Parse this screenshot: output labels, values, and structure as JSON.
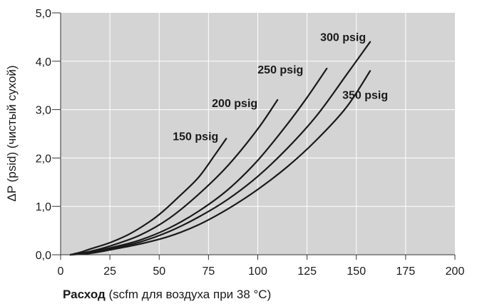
{
  "chart_data": {
    "type": "line",
    "xlabel_bold": "Расход",
    "xlabel_rest": " (scfm для воздуха при 38 °C)",
    "ylabel": "ΔP (psid) (чистый сухой)",
    "xlim": [
      0,
      200
    ],
    "ylim": [
      0,
      5
    ],
    "x_ticks": [
      "0",
      "25",
      "50",
      "75",
      "100",
      "125",
      "150",
      "175",
      "200"
    ],
    "y_ticks": [
      "0,0",
      "1,0",
      "2,0",
      "3,0",
      "4,0",
      "5,0"
    ],
    "grid": true,
    "colors": {
      "plot_bg": "#d4d4d4",
      "grid": "#ffffff",
      "line": "#1a1a1a",
      "text": "#1a1a1a"
    },
    "series": [
      {
        "name": "150 psig",
        "x": [
          5,
          10,
          15,
          25,
          35,
          45,
          52,
          60,
          70,
          78,
          84
        ],
        "y": [
          0,
          0.05,
          0.12,
          0.25,
          0.43,
          0.68,
          0.9,
          1.2,
          1.6,
          2.05,
          2.4
        ]
      },
      {
        "name": "200 psig",
        "x": [
          5,
          15,
          25,
          40,
          55,
          70,
          85,
          100,
          110
        ],
        "y": [
          0,
          0.07,
          0.18,
          0.4,
          0.75,
          1.25,
          1.85,
          2.6,
          3.2
        ]
      },
      {
        "name": "250 psig",
        "x": [
          5,
          15,
          25,
          40,
          55,
          70,
          85,
          100,
          115,
          125,
          135
        ],
        "y": [
          0,
          0.05,
          0.14,
          0.3,
          0.55,
          0.9,
          1.35,
          1.95,
          2.7,
          3.25,
          3.85
        ]
      },
      {
        "name": "300 psig",
        "x": [
          5,
          15,
          25,
          40,
          55,
          70,
          85,
          100,
          115,
          130,
          145,
          157
        ],
        "y": [
          0,
          0.04,
          0.12,
          0.26,
          0.48,
          0.78,
          1.15,
          1.62,
          2.2,
          2.88,
          3.72,
          4.4
        ]
      },
      {
        "name": "350 psig",
        "x": [
          5,
          15,
          25,
          40,
          55,
          70,
          85,
          100,
          115,
          130,
          145,
          157
        ],
        "y": [
          0,
          0.03,
          0.1,
          0.22,
          0.38,
          0.62,
          0.95,
          1.35,
          1.82,
          2.38,
          3.05,
          3.8
        ]
      }
    ]
  }
}
